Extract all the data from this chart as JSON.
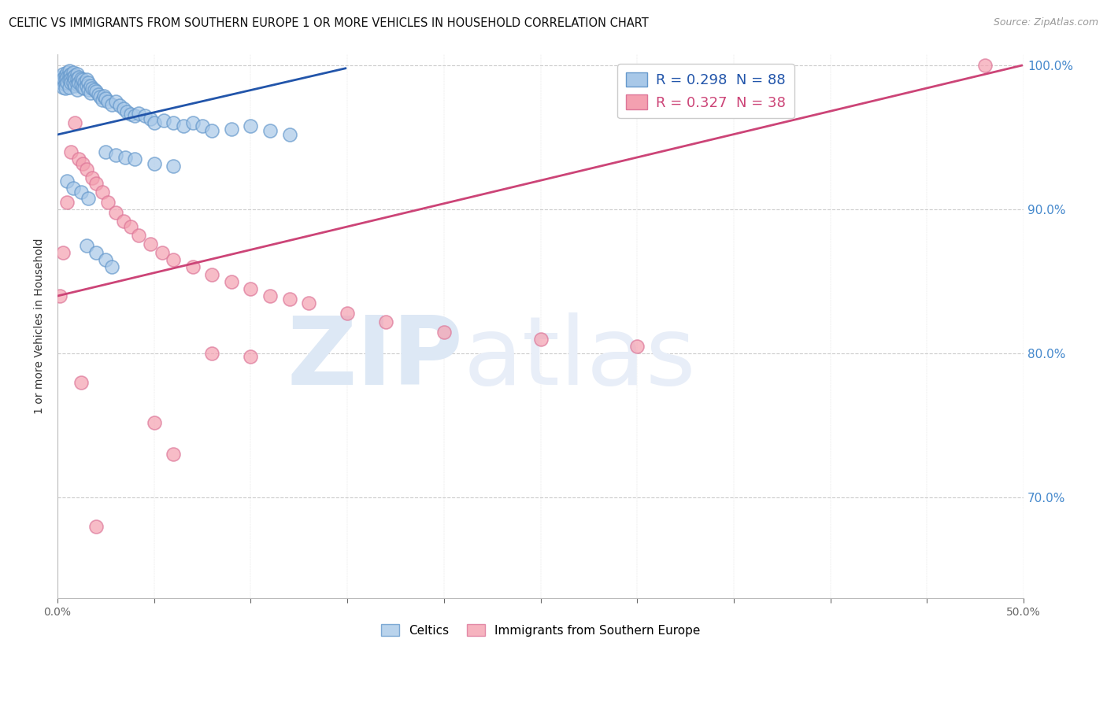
{
  "title": "CELTIC VS IMMIGRANTS FROM SOUTHERN EUROPE 1 OR MORE VEHICLES IN HOUSEHOLD CORRELATION CHART",
  "source": "Source: ZipAtlas.com",
  "ylabel": "1 or more Vehicles in Household",
  "xlim": [
    0.0,
    0.5
  ],
  "ylim": [
    0.63,
    1.008
  ],
  "blue_label": "Celtics",
  "pink_label": "Immigrants from Southern Europe",
  "blue_R": 0.298,
  "blue_N": 88,
  "pink_R": 0.327,
  "pink_N": 38,
  "blue_color": "#a8c8e8",
  "pink_color": "#f4a0b0",
  "blue_edge_color": "#6699cc",
  "pink_edge_color": "#dd7799",
  "blue_line_color": "#2255aa",
  "pink_line_color": "#cc4477",
  "watermark_zip": "ZIP",
  "watermark_atlas": "atlas",
  "watermark_color": "#dde8f5",
  "blue_scatter_x": [
    0.001,
    0.002,
    0.002,
    0.003,
    0.003,
    0.003,
    0.004,
    0.004,
    0.004,
    0.004,
    0.005,
    0.005,
    0.005,
    0.006,
    0.006,
    0.006,
    0.006,
    0.007,
    0.007,
    0.007,
    0.008,
    0.008,
    0.008,
    0.009,
    0.009,
    0.009,
    0.01,
    0.01,
    0.01,
    0.01,
    0.011,
    0.011,
    0.012,
    0.012,
    0.013,
    0.013,
    0.014,
    0.014,
    0.015,
    0.015,
    0.016,
    0.016,
    0.017,
    0.017,
    0.018,
    0.019,
    0.02,
    0.021,
    0.022,
    0.023,
    0.024,
    0.025,
    0.026,
    0.028,
    0.03,
    0.032,
    0.034,
    0.036,
    0.038,
    0.04,
    0.042,
    0.045,
    0.048,
    0.05,
    0.055,
    0.06,
    0.065,
    0.07,
    0.075,
    0.08,
    0.09,
    0.1,
    0.11,
    0.12,
    0.025,
    0.03,
    0.035,
    0.04,
    0.05,
    0.06,
    0.015,
    0.02,
    0.025,
    0.028,
    0.005,
    0.008,
    0.012,
    0.016
  ],
  "blue_scatter_y": [
    0.99,
    0.992,
    0.988,
    0.994,
    0.991,
    0.985,
    0.993,
    0.99,
    0.987,
    0.984,
    0.995,
    0.992,
    0.988,
    0.996,
    0.993,
    0.99,
    0.985,
    0.994,
    0.991,
    0.988,
    0.995,
    0.992,
    0.988,
    0.993,
    0.99,
    0.986,
    0.994,
    0.991,
    0.987,
    0.983,
    0.992,
    0.988,
    0.991,
    0.987,
    0.99,
    0.985,
    0.988,
    0.984,
    0.99,
    0.986,
    0.988,
    0.983,
    0.986,
    0.981,
    0.984,
    0.983,
    0.982,
    0.98,
    0.978,
    0.976,
    0.979,
    0.977,
    0.975,
    0.973,
    0.975,
    0.972,
    0.97,
    0.968,
    0.966,
    0.965,
    0.967,
    0.965,
    0.963,
    0.96,
    0.962,
    0.96,
    0.958,
    0.96,
    0.958,
    0.955,
    0.956,
    0.958,
    0.955,
    0.952,
    0.94,
    0.938,
    0.936,
    0.935,
    0.932,
    0.93,
    0.875,
    0.87,
    0.865,
    0.86,
    0.92,
    0.915,
    0.912,
    0.908
  ],
  "pink_scatter_x": [
    0.001,
    0.003,
    0.005,
    0.007,
    0.009,
    0.011,
    0.013,
    0.015,
    0.018,
    0.02,
    0.023,
    0.026,
    0.03,
    0.034,
    0.038,
    0.042,
    0.048,
    0.054,
    0.06,
    0.07,
    0.08,
    0.09,
    0.1,
    0.11,
    0.12,
    0.13,
    0.15,
    0.17,
    0.05,
    0.06,
    0.08,
    0.1,
    0.2,
    0.25,
    0.3,
    0.48,
    0.012,
    0.02
  ],
  "pink_scatter_y": [
    0.84,
    0.87,
    0.905,
    0.94,
    0.96,
    0.935,
    0.932,
    0.928,
    0.922,
    0.918,
    0.912,
    0.905,
    0.898,
    0.892,
    0.888,
    0.882,
    0.876,
    0.87,
    0.865,
    0.86,
    0.855,
    0.85,
    0.845,
    0.84,
    0.838,
    0.835,
    0.828,
    0.822,
    0.752,
    0.73,
    0.8,
    0.798,
    0.815,
    0.81,
    0.805,
    1.0,
    0.78,
    0.68
  ],
  "blue_line_x": [
    0.0,
    0.149
  ],
  "blue_line_y": [
    0.952,
    0.998
  ],
  "pink_line_x": [
    0.0,
    0.499
  ],
  "pink_line_y": [
    0.84,
    1.0
  ]
}
